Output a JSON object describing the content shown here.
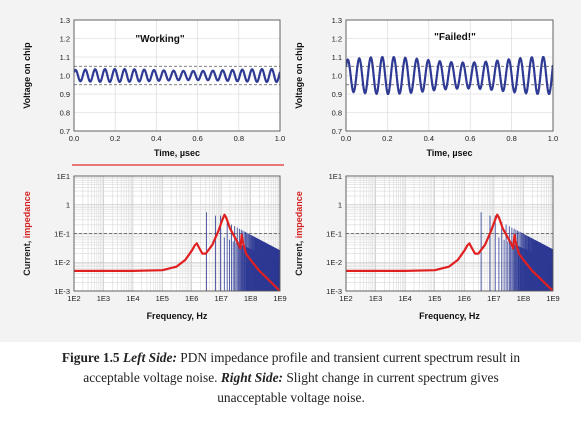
{
  "caption": {
    "label": "Figure 1.5",
    "left_title": "Left Side:",
    "left_text": "PDN impedance profile and transient current spectrum result in acceptable voltage noise.",
    "right_title": "Right Side:",
    "right_text": "Slight change in current spectrum gives unacceptable voltage noise."
  },
  "chart_data": [
    {
      "id": "left-time",
      "type": "line",
      "annotation": "\"Working\"",
      "xlabel": "Time, µsec",
      "ylabel": "Voltage on chip",
      "xlim": [
        0,
        1.0
      ],
      "ylim": [
        0.7,
        1.3
      ],
      "xticks": [
        "0.0",
        "0.2",
        "0.4",
        "0.6",
        "0.8",
        "1.0"
      ],
      "yticks": [
        "0.7",
        "0.8",
        "0.9",
        "1.0",
        "1.1",
        "1.2",
        "1.3"
      ],
      "limits": [
        0.95,
        1.05
      ],
      "series": [
        {
          "mean": 1.0,
          "amplitude": 0.035,
          "cycles": 21,
          "color": "#2e3a94"
        }
      ],
      "grid": true
    },
    {
      "id": "right-time",
      "type": "line",
      "annotation": "\"Failed!\"",
      "xlabel": "Time, µsec",
      "ylabel": "Voltage on chip",
      "xlim": [
        0,
        1.0
      ],
      "ylim": [
        0.7,
        1.3
      ],
      "xticks": [
        "0.0",
        "0.2",
        "0.4",
        "0.6",
        "0.8",
        "1.0"
      ],
      "yticks": [
        "0.7",
        "0.8",
        "0.9",
        "1.0",
        "1.1",
        "1.2",
        "1.3"
      ],
      "limits": [
        0.95,
        1.05
      ],
      "series": [
        {
          "mean": 1.0,
          "amplitude": 0.1,
          "cycles": 18,
          "color": "#2e3a94"
        }
      ],
      "grid": true
    },
    {
      "id": "left-freq",
      "type": "line",
      "xlabel": "Frequency, Hz",
      "ylabel_parts": [
        "Current, ",
        "impedance"
      ],
      "xscale": "log",
      "yscale": "log",
      "xlim": [
        100,
        1000000000
      ],
      "ylim": [
        0.001,
        10
      ],
      "xticks": [
        "1E2",
        "1E3",
        "1E4",
        "1E5",
        "1E6",
        "1E7",
        "1E8",
        "1E9"
      ],
      "yticks": [
        "1E-3",
        "1E-2",
        "1E-1",
        "1",
        "1E1"
      ],
      "target_impedance": 0.1,
      "impedance": {
        "color": "#e02020",
        "points": [
          [
            100,
            0.005
          ],
          [
            10000,
            0.005
          ],
          [
            100000,
            0.0053
          ],
          [
            300000,
            0.007
          ],
          [
            600000,
            0.012
          ],
          [
            1000000,
            0.025
          ],
          [
            1300000,
            0.04
          ],
          [
            1500000,
            0.045
          ],
          [
            1700000,
            0.035
          ],
          [
            2300000,
            0.02
          ],
          [
            3000000,
            0.02
          ],
          [
            5000000,
            0.04
          ],
          [
            8000000,
            0.12
          ],
          [
            11000000,
            0.3
          ],
          [
            13000000,
            0.45
          ],
          [
            15000000,
            0.35
          ],
          [
            20000000,
            0.15
          ],
          [
            30000000,
            0.07
          ],
          [
            40000000,
            0.04
          ],
          [
            45000000,
            0.03
          ],
          [
            50000000,
            0.09
          ],
          [
            55000000,
            0.05
          ],
          [
            70000000,
            0.02
          ],
          [
            100000000,
            0.012
          ],
          [
            200000000,
            0.005
          ],
          [
            500000000,
            0.002
          ],
          [
            1000000000,
            0.001
          ]
        ]
      },
      "spectrum": {
        "color": "#2e3a94",
        "f0": 3200000,
        "top_amp": 0.55,
        "peak_amp": 0.6,
        "range": [
          3000000,
          1000000000
        ]
      },
      "grid": true
    },
    {
      "id": "right-freq",
      "type": "line",
      "xlabel": "Frequency, Hz",
      "ylabel_parts": [
        "Current, ",
        "impedance"
      ],
      "xscale": "log",
      "yscale": "log",
      "xlim": [
        100,
        1000000000
      ],
      "ylim": [
        0.001,
        10
      ],
      "xticks": [
        "1E2",
        "1E3",
        "1E4",
        "1E5",
        "1E6",
        "1E7",
        "1E8",
        "1E9"
      ],
      "yticks": [
        "1E-3",
        "1E-2",
        "1E-1",
        "1",
        "1E1"
      ],
      "target_impedance": 0.1,
      "impedance": {
        "color": "#e02020",
        "points": [
          [
            100,
            0.005
          ],
          [
            10000,
            0.005
          ],
          [
            100000,
            0.0053
          ],
          [
            300000,
            0.007
          ],
          [
            600000,
            0.012
          ],
          [
            1000000,
            0.025
          ],
          [
            1300000,
            0.04
          ],
          [
            1500000,
            0.045
          ],
          [
            1700000,
            0.035
          ],
          [
            2300000,
            0.02
          ],
          [
            3000000,
            0.02
          ],
          [
            5000000,
            0.04
          ],
          [
            8000000,
            0.12
          ],
          [
            11000000,
            0.3
          ],
          [
            13000000,
            0.45
          ],
          [
            15000000,
            0.35
          ],
          [
            20000000,
            0.15
          ],
          [
            30000000,
            0.07
          ],
          [
            40000000,
            0.04
          ],
          [
            45000000,
            0.03
          ],
          [
            50000000,
            0.09
          ],
          [
            55000000,
            0.05
          ],
          [
            70000000,
            0.02
          ],
          [
            100000000,
            0.012
          ],
          [
            200000000,
            0.005
          ],
          [
            500000000,
            0.002
          ],
          [
            1000000000,
            0.001
          ]
        ]
      },
      "spectrum": {
        "color": "#2e3a94",
        "f0": 3700000,
        "top_amp": 0.55,
        "peak_amp": 0.6,
        "range": [
          3000000,
          1000000000
        ]
      },
      "grid": true
    }
  ]
}
